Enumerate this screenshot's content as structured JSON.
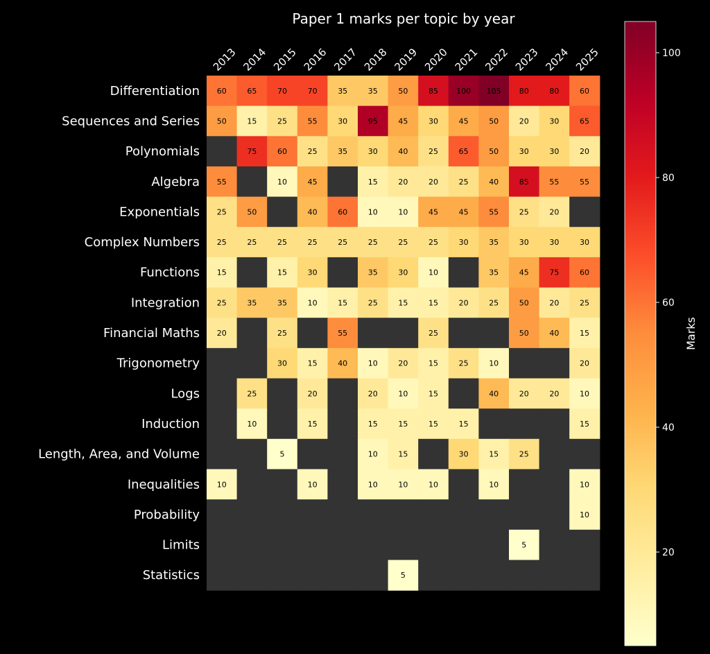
{
  "chart_data": {
    "type": "heatmap",
    "title": "Paper 1 marks per topic by year",
    "x_categories": [
      "2013",
      "2014",
      "2015",
      "2016",
      "2017",
      "2018",
      "2019",
      "2020",
      "2021",
      "2022",
      "2023",
      "2024",
      "2025"
    ],
    "y_categories": [
      "Differentiation",
      "Sequences and Series",
      "Polynomials",
      "Algebra",
      "Exponentials",
      "Complex Numbers",
      "Functions",
      "Integration",
      "Financial Maths",
      "Trigonometry",
      "Logs",
      "Induction",
      "Length, Area, and Volume",
      "Inequalities",
      "Probability",
      "Limits",
      "Statistics"
    ],
    "values": [
      [
        60,
        65,
        70,
        70,
        35,
        35,
        50,
        85,
        100,
        105,
        80,
        80,
        60
      ],
      [
        50,
        15,
        25,
        55,
        30,
        95,
        45,
        30,
        45,
        50,
        20,
        30,
        65
      ],
      [
        null,
        75,
        60,
        25,
        35,
        30,
        40,
        25,
        65,
        50,
        30,
        30,
        20
      ],
      [
        55,
        null,
        10,
        45,
        null,
        15,
        20,
        20,
        25,
        40,
        85,
        55,
        55
      ],
      [
        25,
        50,
        null,
        40,
        60,
        10,
        10,
        45,
        45,
        55,
        25,
        20,
        null
      ],
      [
        25,
        25,
        25,
        25,
        25,
        25,
        25,
        25,
        30,
        35,
        30,
        30,
        30
      ],
      [
        15,
        null,
        15,
        30,
        null,
        35,
        30,
        10,
        null,
        35,
        45,
        75,
        60
      ],
      [
        25,
        35,
        35,
        10,
        15,
        25,
        15,
        15,
        20,
        25,
        50,
        20,
        25
      ],
      [
        20,
        null,
        25,
        null,
        55,
        null,
        null,
        25,
        null,
        null,
        50,
        40,
        15
      ],
      [
        null,
        null,
        30,
        15,
        40,
        10,
        20,
        15,
        25,
        10,
        null,
        null,
        20
      ],
      [
        null,
        25,
        null,
        20,
        null,
        20,
        10,
        15,
        null,
        40,
        20,
        20,
        10
      ],
      [
        null,
        10,
        null,
        15,
        null,
        15,
        15,
        15,
        15,
        null,
        null,
        null,
        15
      ],
      [
        null,
        null,
        5,
        null,
        null,
        10,
        15,
        null,
        30,
        15,
        25,
        null,
        null
      ],
      [
        10,
        null,
        null,
        10,
        null,
        10,
        10,
        10,
        null,
        10,
        null,
        null,
        10
      ],
      [
        null,
        null,
        null,
        null,
        null,
        null,
        null,
        null,
        null,
        null,
        null,
        null,
        10
      ],
      [
        null,
        null,
        null,
        null,
        null,
        null,
        null,
        null,
        null,
        null,
        5,
        null,
        null
      ],
      [
        null,
        null,
        null,
        null,
        null,
        null,
        5,
        null,
        null,
        null,
        null,
        null,
        null
      ]
    ],
    "colorbar": {
      "label": "Marks",
      "range": [
        5,
        105
      ],
      "ticks": [
        20,
        40,
        60,
        80,
        100
      ],
      "colormap": "YlOrRd"
    },
    "missing_color": "#333333",
    "background_color": "#000000"
  }
}
